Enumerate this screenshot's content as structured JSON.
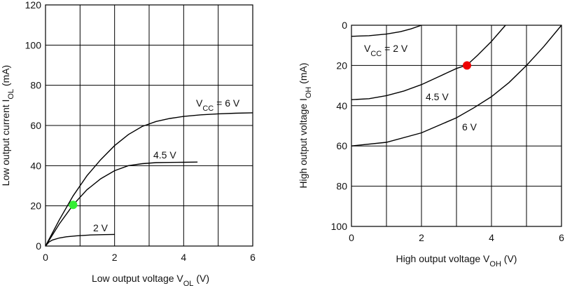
{
  "chart_data": [
    {
      "type": "line",
      "xlabel": {
        "main": "Low output voltage  V",
        "sub": "OL",
        "unit": "  (V)"
      },
      "ylabel": {
        "main": "Low output current  I",
        "sub": "OL",
        "unit": "  (mA)"
      },
      "xlim": [
        0,
        6
      ],
      "ylim": [
        0,
        120
      ],
      "x_ticks": [
        "0",
        "2",
        "4",
        "6"
      ],
      "y_ticks": [
        "0",
        "20",
        "40",
        "60",
        "80",
        "100",
        "120"
      ],
      "grid": true,
      "series": [
        {
          "name": "2 V",
          "label": {
            "main": "2 V"
          },
          "x": [
            0,
            0.1,
            0.2,
            0.4,
            0.6,
            0.9,
            1.3,
            1.7,
            2.0
          ],
          "y": [
            0,
            2,
            3,
            4,
            4.6,
            5.1,
            5.5,
            5.7,
            5.8
          ]
        },
        {
          "name": "4.5 V",
          "label": {
            "main": "4.5 V"
          },
          "x": [
            0,
            0.4,
            0.8,
            1.2,
            1.6,
            2.0,
            2.4,
            2.8,
            3.2,
            3.6,
            4.0,
            4.4
          ],
          "y": [
            0,
            11,
            20.5,
            28,
            33.5,
            37.5,
            40,
            41,
            41.5,
            41.6,
            41.7,
            41.8
          ],
          "marker": {
            "x": 0.8,
            "y": 20.5,
            "color": "#33ee33"
          }
        },
        {
          "name": "Vcc = 6 V",
          "label": {
            "main": "V",
            "sub": "CC",
            "rest": " = 6 V"
          },
          "x": [
            0,
            0.4,
            0.8,
            1.2,
            1.6,
            2.0,
            2.4,
            2.8,
            3.2,
            3.6,
            4.0,
            4.5,
            5.0,
            5.5,
            6.0
          ],
          "y": [
            0,
            13,
            25,
            35,
            43,
            50,
            55.5,
            59.5,
            62,
            63.5,
            64.5,
            65.3,
            65.8,
            66.1,
            66.3
          ]
        }
      ]
    },
    {
      "type": "line",
      "xlabel": {
        "main": "High output voltage  V",
        "sub": "OH",
        "unit": "  (V)"
      },
      "ylabel": {
        "main": "High output voltage  I",
        "sub": "OH",
        "unit": "  (mA)"
      },
      "xlim": [
        0,
        6
      ],
      "ylim": [
        0,
        100
      ],
      "y_inverted": true,
      "x_ticks": [
        "0",
        "2",
        "4",
        "6"
      ],
      "y_ticks": [
        "0",
        "20",
        "40",
        "60",
        "80",
        "100"
      ],
      "grid": true,
      "series": [
        {
          "name": "Vcc = 2 V",
          "label": {
            "main": "V",
            "sub": "CC",
            "rest": " = 2 V"
          },
          "x": [
            0,
            0.5,
            1.0,
            1.4,
            1.7,
            2.0
          ],
          "y": [
            5.5,
            5.2,
            4.4,
            3.2,
            1.8,
            0
          ]
        },
        {
          "name": "4.5 V",
          "label": {
            "main": "4.5 V"
          },
          "x": [
            0,
            0.5,
            1.0,
            1.5,
            2.0,
            2.5,
            3.0,
            3.3,
            3.6,
            4.0,
            4.4
          ],
          "y": [
            37,
            36.5,
            35,
            32.7,
            29.5,
            25.5,
            21.5,
            19.8,
            15,
            8,
            0
          ],
          "marker": {
            "x": 3.3,
            "y": 20,
            "color": "#ee0000"
          }
        },
        {
          "name": "6 V",
          "label": {
            "main": "6 V"
          },
          "x": [
            0,
            1.0,
            2.0,
            3.0,
            3.5,
            4.0,
            4.5,
            5.0,
            5.5,
            6.0
          ],
          "y": [
            60,
            58.2,
            53.5,
            46,
            41,
            35.5,
            28.5,
            20,
            10.5,
            0
          ]
        }
      ]
    }
  ]
}
